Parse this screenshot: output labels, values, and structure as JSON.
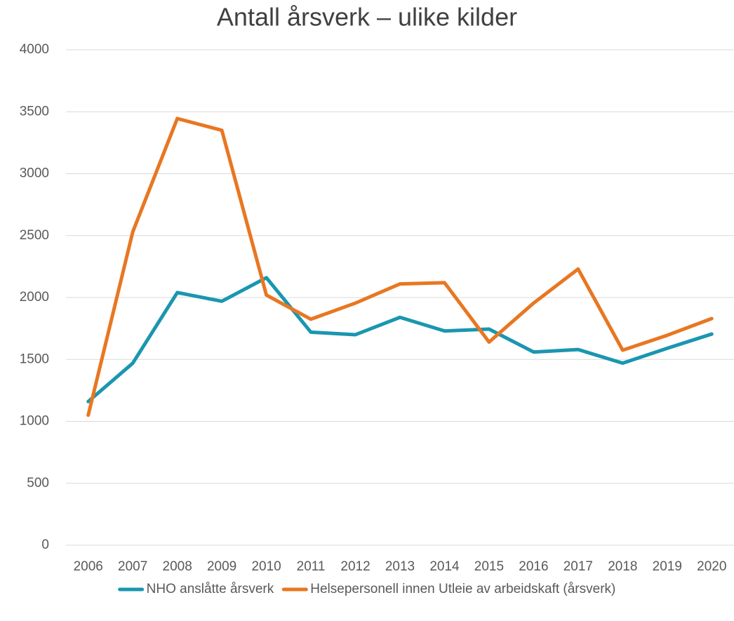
{
  "chart_data": {
    "type": "line",
    "title": "Antall årsverk – ulike kilder",
    "categories": [
      "2006",
      "2007",
      "2008",
      "2009",
      "2010",
      "2011",
      "2012",
      "2013",
      "2014",
      "2015",
      "2016",
      "2017",
      "2018",
      "2019",
      "2020"
    ],
    "series": [
      {
        "name": "NHO anslåtte årsverk",
        "color": "#1a96b0",
        "values": [
          1160,
          1470,
          2040,
          1970,
          2160,
          1720,
          1700,
          1840,
          1730,
          1745,
          1560,
          1580,
          1470,
          1590,
          1705
        ]
      },
      {
        "name": "Helsepersonell innen Utleie av arbeidskaft (årsverk)",
        "color": "#e87722",
        "values": [
          1050,
          2530,
          3445,
          3350,
          2020,
          1825,
          1955,
          2110,
          2120,
          1640,
          1955,
          2230,
          1575,
          1695,
          1830
        ]
      }
    ],
    "ylim": [
      0,
      4000
    ],
    "yticks": [
      0,
      500,
      1000,
      1500,
      2000,
      2500,
      3000,
      3500,
      4000
    ],
    "grid": true,
    "legend": "bottom"
  }
}
